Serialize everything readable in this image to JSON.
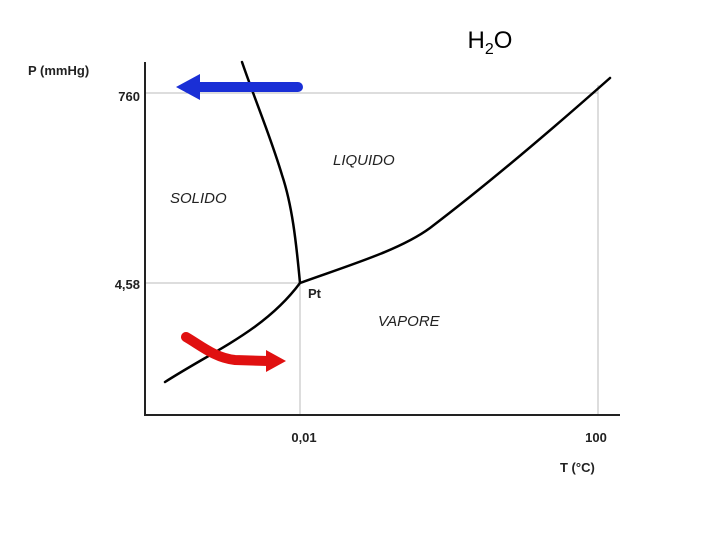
{
  "title": {
    "main": "H",
    "subscript": "2",
    "suffix": "O"
  },
  "axes": {
    "y_label": "P (mmHg)",
    "x_label": "T (°C)",
    "y_ticks": [
      "760",
      "4,58"
    ],
    "x_ticks": [
      "0,01",
      "100"
    ]
  },
  "regions": {
    "liquid": "LIQUIDO",
    "solid": "SOLIDO",
    "vapor": "VAPORE"
  },
  "triple_point": "Pt"
}
